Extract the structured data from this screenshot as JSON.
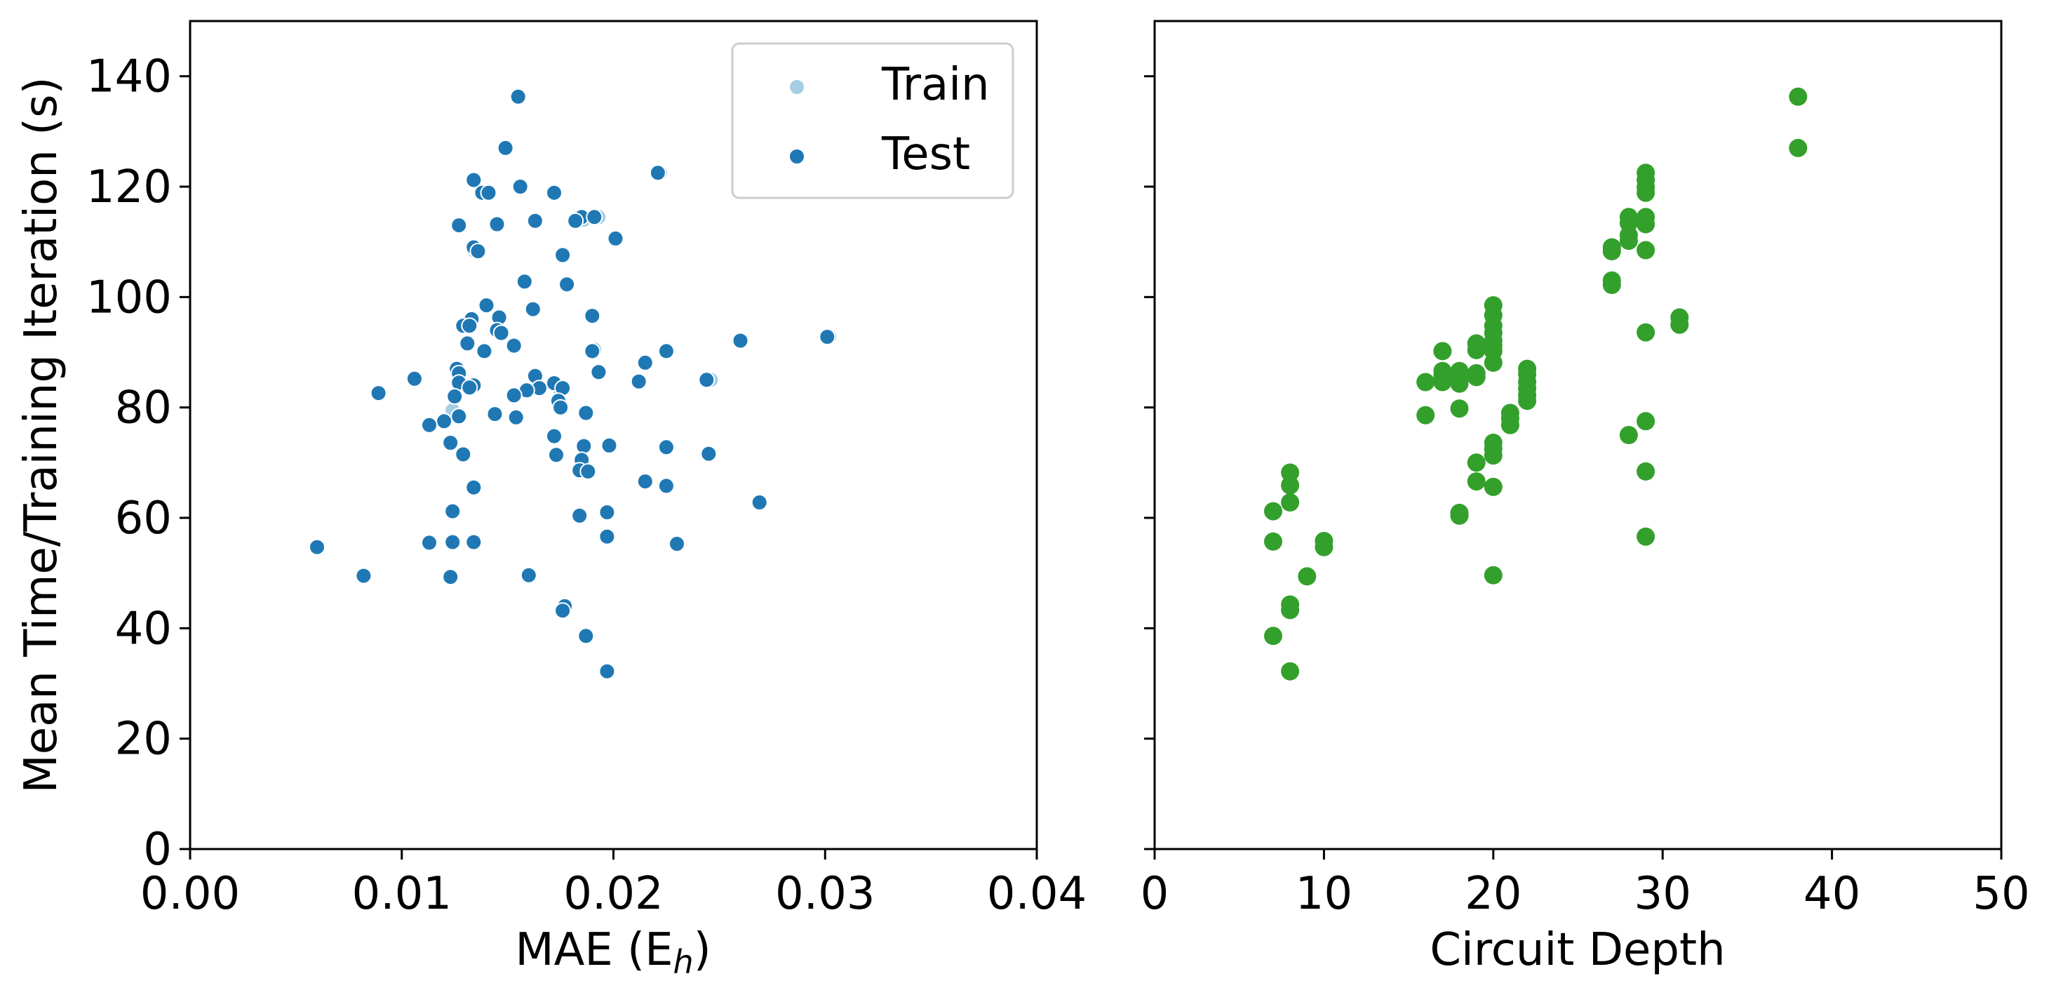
{
  "chart_data": [
    {
      "type": "scatter",
      "xlabel": "MAE (E",
      "xlabel_sub": "h",
      "xlabel_end": ")",
      "ylabel": "Mean Time/Training Iteration (s)",
      "xlim": [
        0,
        0.04
      ],
      "ylim": [
        0,
        150
      ],
      "xticks": [
        0.0,
        0.01,
        0.02,
        0.03,
        0.04
      ],
      "xtick_labels": [
        "0.00",
        "0.01",
        "0.02",
        "0.03",
        "0.04"
      ],
      "yticks": [
        0,
        20,
        40,
        60,
        80,
        100,
        120,
        140
      ],
      "ytick_labels": [
        "0",
        "20",
        "40",
        "60",
        "80",
        "100",
        "120",
        "140"
      ],
      "grid": false,
      "legend": {
        "placement": "upper right",
        "entries": [
          "Train",
          "Test"
        ]
      },
      "series": [
        {
          "name": "Train",
          "color": "#a6cee3",
          "points": [
            [
              0.0222,
              122.5
            ],
            [
              0.0193,
              114.5
            ],
            [
              0.0186,
              114.0
            ],
            [
              0.0302,
              92.8
            ],
            [
              0.0191,
              90.5
            ],
            [
              0.0246,
              85.0
            ],
            [
              0.0175,
              83.0
            ],
            [
              0.0124,
              79.5
            ],
            [
              0.0176,
              43.5
            ],
            [
              0.0134,
              108.5
            ]
          ]
        },
        {
          "name": "Test",
          "color": "#1f78b4",
          "points": [
            [
              0.0155,
              136.3
            ],
            [
              0.0149,
              127.0
            ],
            [
              0.0221,
              122.5
            ],
            [
              0.0134,
              121.2
            ],
            [
              0.0156,
              120.0
            ],
            [
              0.0138,
              118.9
            ],
            [
              0.0141,
              118.9
            ],
            [
              0.0172,
              118.9
            ],
            [
              0.0185,
              114.5
            ],
            [
              0.0191,
              114.5
            ],
            [
              0.0182,
              113.8
            ],
            [
              0.0163,
              113.8
            ],
            [
              0.0145,
              113.2
            ],
            [
              0.0127,
              113.0
            ],
            [
              0.0201,
              110.6
            ],
            [
              0.0134,
              109.0
            ],
            [
              0.0136,
              108.3
            ],
            [
              0.0176,
              107.6
            ],
            [
              0.0178,
              102.3
            ],
            [
              0.0158,
              102.8
            ],
            [
              0.0162,
              97.8
            ],
            [
              0.014,
              98.5
            ],
            [
              0.019,
              96.6
            ],
            [
              0.0146,
              96.3
            ],
            [
              0.0133,
              96.0
            ],
            [
              0.0129,
              94.8
            ],
            [
              0.0132,
              94.8
            ],
            [
              0.0145,
              94.0
            ],
            [
              0.0147,
              93.5
            ],
            [
              0.0301,
              92.8
            ],
            [
              0.026,
              92.1
            ],
            [
              0.0131,
              91.6
            ],
            [
              0.0153,
              91.2
            ],
            [
              0.019,
              90.2
            ],
            [
              0.0225,
              90.2
            ],
            [
              0.0139,
              90.2
            ],
            [
              0.0215,
              88.1
            ],
            [
              0.0126,
              87.0
            ],
            [
              0.0127,
              86.2
            ],
            [
              0.0193,
              86.4
            ],
            [
              0.0163,
              85.7
            ],
            [
              0.0106,
              85.2
            ],
            [
              0.0244,
              85.0
            ],
            [
              0.0212,
              84.7
            ],
            [
              0.0127,
              84.5
            ],
            [
              0.0172,
              84.4
            ],
            [
              0.0134,
              84.0
            ],
            [
              0.0176,
              83.5
            ],
            [
              0.0165,
              83.5
            ],
            [
              0.0132,
              83.6
            ],
            [
              0.0159,
              83.1
            ],
            [
              0.0089,
              82.6
            ],
            [
              0.0153,
              82.2
            ],
            [
              0.0125,
              82.0
            ],
            [
              0.0174,
              81.2
            ],
            [
              0.0175,
              80.0
            ],
            [
              0.0187,
              79.0
            ],
            [
              0.0144,
              78.8
            ],
            [
              0.0127,
              78.4
            ],
            [
              0.0154,
              78.2
            ],
            [
              0.012,
              77.5
            ],
            [
              0.0113,
              76.8
            ],
            [
              0.0172,
              74.8
            ],
            [
              0.0123,
              73.6
            ],
            [
              0.0198,
              73.1
            ],
            [
              0.0186,
              73.0
            ],
            [
              0.0225,
              72.8
            ],
            [
              0.0245,
              71.6
            ],
            [
              0.0129,
              71.5
            ],
            [
              0.0173,
              71.4
            ],
            [
              0.0185,
              70.5
            ],
            [
              0.0184,
              68.6
            ],
            [
              0.0188,
              68.4
            ],
            [
              0.0215,
              66.6
            ],
            [
              0.0225,
              65.8
            ],
            [
              0.0134,
              65.5
            ],
            [
              0.0269,
              62.8
            ],
            [
              0.0124,
              61.2
            ],
            [
              0.0197,
              61.0
            ],
            [
              0.0184,
              60.4
            ],
            [
              0.0197,
              56.6
            ],
            [
              0.0134,
              55.6
            ],
            [
              0.0113,
              55.5
            ],
            [
              0.0124,
              55.6
            ],
            [
              0.023,
              55.3
            ],
            [
              0.006,
              54.7
            ],
            [
              0.016,
              49.6
            ],
            [
              0.0082,
              49.5
            ],
            [
              0.0123,
              49.3
            ],
            [
              0.0177,
              44.0
            ],
            [
              0.0176,
              43.2
            ],
            [
              0.0187,
              38.6
            ],
            [
              0.0197,
              32.2
            ]
          ]
        }
      ]
    },
    {
      "type": "scatter",
      "xlabel": "Circuit Depth",
      "ylabel": "",
      "xlim": [
        0,
        50
      ],
      "ylim": [
        0,
        150
      ],
      "xticks": [
        0,
        10,
        20,
        30,
        40,
        50
      ],
      "xtick_labels": [
        "0",
        "10",
        "20",
        "30",
        "40",
        "50"
      ],
      "yticks": [
        0,
        20,
        40,
        60,
        80,
        100,
        120,
        140
      ],
      "grid": false,
      "series": [
        {
          "color": "#33a02c",
          "points": [
            [
              7,
              61.2
            ],
            [
              7,
              55.7
            ],
            [
              7,
              38.6
            ],
            [
              8,
              68.2
            ],
            [
              8,
              65.9
            ],
            [
              8,
              62.8
            ],
            [
              8,
              44.3
            ],
            [
              8,
              43.3
            ],
            [
              8,
              32.2
            ],
            [
              9,
              49.4
            ],
            [
              10,
              55.8
            ],
            [
              10,
              54.7
            ],
            [
              16,
              84.6
            ],
            [
              16,
              78.6
            ],
            [
              17,
              90.2
            ],
            [
              17,
              86.6
            ],
            [
              17,
              85.7
            ],
            [
              17,
              84.6
            ],
            [
              18,
              86.6
            ],
            [
              18,
              85.1
            ],
            [
              18,
              84.3
            ],
            [
              18,
              79.8
            ],
            [
              18,
              60.9
            ],
            [
              18,
              60.4
            ],
            [
              19,
              91.6
            ],
            [
              19,
              90.4
            ],
            [
              19,
              86.2
            ],
            [
              19,
              85.5
            ],
            [
              19,
              70.0
            ],
            [
              19,
              66.6
            ],
            [
              20,
              98.5
            ],
            [
              20,
              96.7
            ],
            [
              20,
              94.8
            ],
            [
              20,
              93.5
            ],
            [
              20,
              92.1
            ],
            [
              20,
              91.2
            ],
            [
              20,
              90.2
            ],
            [
              20,
              88.1
            ],
            [
              20,
              73.6
            ],
            [
              20,
              72.5
            ],
            [
              20,
              71.3
            ],
            [
              20,
              65.6
            ],
            [
              20,
              49.6
            ],
            [
              21,
              79.0
            ],
            [
              21,
              78.0
            ],
            [
              21,
              76.8
            ],
            [
              22,
              87.0
            ],
            [
              22,
              86.0
            ],
            [
              22,
              84.6
            ],
            [
              22,
              83.4
            ],
            [
              22,
              82.2
            ],
            [
              22,
              81.2
            ],
            [
              27,
              109.0
            ],
            [
              27,
              108.3
            ],
            [
              27,
              103.0
            ],
            [
              27,
              102.2
            ],
            [
              28,
              114.5
            ],
            [
              28,
              113.4
            ],
            [
              28,
              111.2
            ],
            [
              28,
              110.2
            ],
            [
              28,
              75.0
            ],
            [
              29,
              122.5
            ],
            [
              29,
              121.2
            ],
            [
              29,
              119.9
            ],
            [
              29,
              118.9
            ],
            [
              29,
              114.5
            ],
            [
              29,
              113.2
            ],
            [
              29,
              108.5
            ],
            [
              29,
              93.6
            ],
            [
              29,
              77.5
            ],
            [
              29,
              68.4
            ],
            [
              29,
              56.6
            ],
            [
              31,
              96.3
            ],
            [
              31,
              95.0
            ],
            [
              38,
              136.3
            ],
            [
              38,
              127.0
            ]
          ]
        }
      ]
    }
  ]
}
